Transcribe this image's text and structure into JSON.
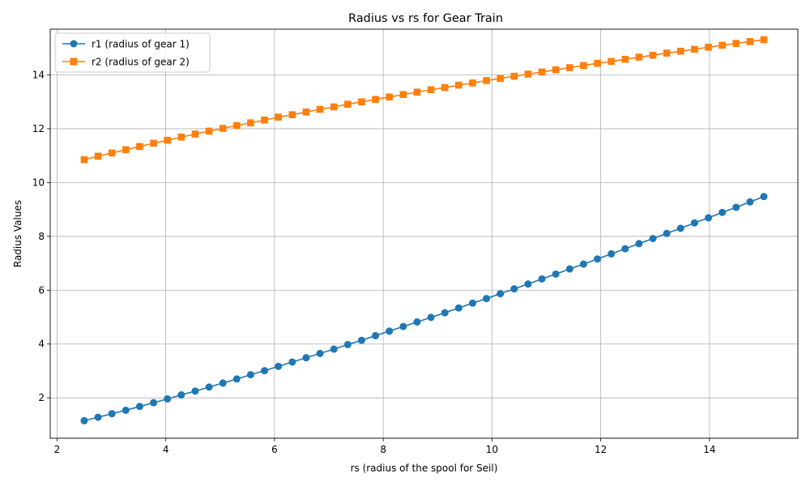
{
  "chart_data": {
    "type": "line",
    "title": "Radius vs rs for Gear Train",
    "xlabel": "rs (radius of the spool for Seil)",
    "ylabel": "Radius Values",
    "xlim": [
      1.875,
      15.625
    ],
    "ylim": [
      0.5,
      15.7
    ],
    "xticks": [
      2,
      4,
      6,
      8,
      10,
      12,
      14
    ],
    "yticks": [
      2,
      4,
      6,
      8,
      10,
      12,
      14
    ],
    "grid": true,
    "legend_position": "upper-left",
    "x": [
      2.5,
      2.755,
      3.01,
      3.265,
      3.52,
      3.776,
      4.031,
      4.286,
      4.541,
      4.796,
      5.051,
      5.306,
      5.561,
      5.816,
      6.071,
      6.327,
      6.582,
      6.837,
      7.092,
      7.347,
      7.602,
      7.857,
      8.112,
      8.367,
      8.622,
      8.878,
      9.133,
      9.388,
      9.643,
      9.898,
      10.153,
      10.408,
      10.663,
      10.918,
      11.173,
      11.429,
      11.684,
      11.939,
      12.194,
      12.449,
      12.704,
      12.959,
      13.214,
      13.469,
      13.724,
      13.98,
      14.235,
      14.49,
      14.745,
      15.0
    ],
    "series": [
      {
        "name": "r1 (radius of gear 1)",
        "color": "#1f77b4",
        "marker": "circle",
        "values": [
          1.15,
          1.28,
          1.41,
          1.54,
          1.68,
          1.82,
          1.96,
          2.11,
          2.25,
          2.4,
          2.55,
          2.7,
          2.86,
          3.01,
          3.17,
          3.33,
          3.49,
          3.65,
          3.81,
          3.98,
          4.14,
          4.31,
          4.48,
          4.65,
          4.82,
          4.99,
          5.16,
          5.34,
          5.52,
          5.69,
          5.87,
          6.05,
          6.23,
          6.42,
          6.6,
          6.79,
          6.97,
          7.16,
          7.35,
          7.54,
          7.73,
          7.92,
          8.11,
          8.3,
          8.5,
          8.69,
          8.89,
          9.08,
          9.28,
          9.48
        ]
      },
      {
        "name": "r2 (radius of gear 2)",
        "color": "#ff7f0e",
        "marker": "square",
        "values": [
          10.85,
          10.98,
          11.1,
          11.22,
          11.34,
          11.46,
          11.57,
          11.69,
          11.8,
          11.91,
          12.01,
          12.12,
          12.22,
          12.32,
          12.43,
          12.52,
          12.62,
          12.72,
          12.81,
          12.91,
          13.0,
          13.09,
          13.18,
          13.27,
          13.36,
          13.45,
          13.53,
          13.62,
          13.7,
          13.79,
          13.87,
          13.95,
          14.03,
          14.11,
          14.19,
          14.27,
          14.35,
          14.43,
          14.5,
          14.58,
          14.66,
          14.73,
          14.81,
          14.88,
          14.95,
          15.03,
          15.1,
          15.17,
          15.24,
          15.31
        ]
      }
    ]
  }
}
